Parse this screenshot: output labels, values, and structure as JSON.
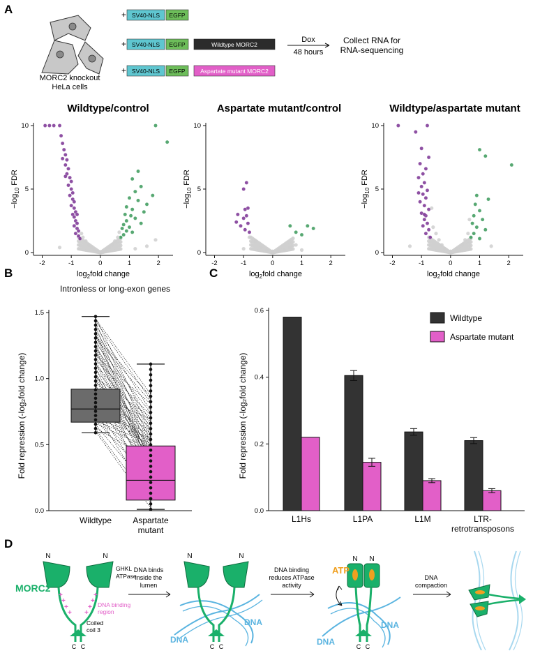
{
  "colors": {
    "purple": "#7b3294",
    "green": "#3a9a5a",
    "grey": "#cfcfcf",
    "dark": "#333333",
    "pink": "#e25fc8",
    "morc_green": "#1ab06a",
    "dna_blue": "#5ab4e0",
    "sv40": "#5fc6d0",
    "egfp": "#6dbd5a",
    "atp_orange": "#f0a020"
  },
  "panel_a": {
    "label": "A",
    "cells_label_line1": "MORC2 knockout",
    "cells_label_line2": "HeLa cells",
    "constructs": [
      {
        "plus": "+",
        "sv40": "SV40-NLS",
        "egfp": "EGFP",
        "extra": ""
      },
      {
        "plus": "+",
        "sv40": "SV40-NLS",
        "egfp": "EGFP",
        "extra": "Wildtype MORC2"
      },
      {
        "plus": "+",
        "sv40": "SV40-NLS",
        "egfp": "EGFP",
        "extra": "Aspartate mutant MORC2"
      }
    ],
    "dox": "Dox",
    "hours": "48 hours",
    "collect_line1": "Collect RNA for",
    "collect_line2": "RNA-sequencing"
  },
  "volcano_plots": [
    {
      "title": "Wildtype/control"
    },
    {
      "title": "Aspartate mutant/control"
    },
    {
      "title": "Wildtype/aspartate mutant"
    }
  ],
  "volcano_axes": {
    "xlabel_prefix": "log",
    "xlabel_sub": "2",
    "xlabel_suffix": "fold change",
    "ylabel_prefix": "−log",
    "ylabel_sub": "10",
    "ylabel_suffix": " FDR",
    "xticks": [
      "-2",
      "-1",
      "0",
      "1",
      "2"
    ],
    "yticks": [
      "0",
      "5",
      "10"
    ]
  },
  "panel_b": {
    "label": "B",
    "title": "Intronless or long-exon genes",
    "ylabel": "Fold repression (-log₂fold change)",
    "yticks": [
      "0.0",
      "0.5",
      "1.0",
      "1.5"
    ],
    "groups": [
      "Wildtype",
      "Aspartate",
      "mutant"
    ]
  },
  "panel_c": {
    "label": "C",
    "ylabel": "Fold repression (-log₂fold change)",
    "yticks": [
      "0.0",
      "0.2",
      "0.4",
      "0.6"
    ],
    "legend_wt": "Wildtype",
    "legend_mut": "Aspartate mutant",
    "cat_l1hs": "L1Hs",
    "cat_l1pa": "L1PA",
    "cat_l1m": "L1M",
    "cat_ltr1": "LTR-",
    "cat_ltr2": "retrotransposons"
  },
  "panel_d": {
    "label": "D",
    "morc2": "MORC2",
    "n": "N",
    "c": "C",
    "ghkl1": "GHKL",
    "ghkl2": "ATPase",
    "dna_binding1": "DNA binding",
    "dna_binding2": "region",
    "coiled1": "Coiled",
    "coiled2": "coil 3",
    "step1_line1": "DNA binds",
    "step1_line2": "inside the",
    "step1_line3": "lumen",
    "step2_line1": "DNA binding",
    "step2_line2": "reduces ATPase",
    "step2_line3": "activity",
    "step3_line1": "DNA",
    "step3_line2": "compaction",
    "dna": "DNA",
    "atp": "ATP"
  },
  "chart_data": [
    {
      "type": "scatter",
      "title": "Wildtype/control",
      "xlabel": "log2fold change",
      "ylabel": "−log10 FDR",
      "xlim": [
        -2.3,
        2.5
      ],
      "ylim": [
        0,
        10
      ],
      "series": [
        {
          "name": "repressed (purple)",
          "points": [
            [
              -1.9,
              10
            ],
            [
              -1.75,
              10
            ],
            [
              -1.6,
              10
            ],
            [
              -1.4,
              10
            ],
            [
              -1.35,
              9.2
            ],
            [
              -1.3,
              8.6
            ],
            [
              -1.25,
              8.1
            ],
            [
              -1.2,
              7.7
            ],
            [
              -1.15,
              7.3
            ],
            [
              -1.2,
              6.9
            ],
            [
              -1.1,
              6.6
            ],
            [
              -1.15,
              6.2
            ],
            [
              -1.05,
              5.9
            ],
            [
              -1.0,
              5.6
            ],
            [
              -1.1,
              5.3
            ],
            [
              -1.0,
              5.0
            ],
            [
              -0.95,
              4.7
            ],
            [
              -1.05,
              4.5
            ],
            [
              -0.95,
              4.2
            ],
            [
              -0.9,
              4.0
            ],
            [
              -1.0,
              3.7
            ],
            [
              -0.9,
              3.5
            ],
            [
              -0.85,
              3.2
            ],
            [
              -0.95,
              3.0
            ],
            [
              -0.9,
              2.8
            ],
            [
              -0.85,
              2.5
            ],
            [
              -0.8,
              2.3
            ],
            [
              -0.9,
              2.1
            ],
            [
              -0.8,
              1.9
            ],
            [
              -0.75,
              1.7
            ],
            [
              -0.85,
              1.5
            ],
            [
              -0.75,
              1.3
            ],
            [
              -0.7,
              1.1
            ],
            [
              -1.2,
              6.0
            ],
            [
              -1.3,
              7.4
            ],
            [
              -0.8,
              3.0
            ]
          ]
        },
        {
          "name": "upregulated (green)",
          "points": [
            [
              1.9,
              10
            ],
            [
              2.3,
              8.7
            ],
            [
              1.3,
              6.4
            ],
            [
              1.1,
              5.8
            ],
            [
              1.4,
              5.2
            ],
            [
              1.2,
              4.8
            ],
            [
              1.8,
              4.5
            ],
            [
              1.0,
              4.3
            ],
            [
              1.3,
              4.1
            ],
            [
              1.6,
              3.8
            ],
            [
              0.9,
              3.6
            ],
            [
              1.1,
              3.4
            ],
            [
              1.5,
              3.2
            ],
            [
              0.85,
              3.0
            ],
            [
              1.05,
              2.9
            ],
            [
              1.2,
              2.7
            ],
            [
              0.9,
              2.5
            ],
            [
              1.4,
              2.3
            ],
            [
              0.8,
              2.2
            ],
            [
              1.0,
              2.0
            ],
            [
              0.75,
              1.9
            ],
            [
              0.9,
              1.7
            ],
            [
              1.1,
              1.6
            ],
            [
              0.8,
              1.4
            ],
            [
              0.7,
              1.2
            ]
          ]
        },
        {
          "name": "not significant (grey)",
          "points": [
            [
              -0.6,
              1.2
            ],
            [
              -0.5,
              0.9
            ],
            [
              -0.4,
              0.6
            ],
            [
              -0.3,
              0.4
            ],
            [
              -0.2,
              0.2
            ],
            [
              -0.1,
              0.1
            ],
            [
              0,
              0.05
            ],
            [
              0.1,
              0.1
            ],
            [
              0.2,
              0.2
            ],
            [
              0.3,
              0.4
            ],
            [
              0.4,
              0.6
            ],
            [
              0.5,
              0.9
            ],
            [
              0.6,
              1.2
            ],
            [
              0.65,
              1.6
            ],
            [
              -0.65,
              1.5
            ],
            [
              1.2,
              0.3
            ],
            [
              1.6,
              0.5
            ],
            [
              -1.4,
              0.4
            ],
            [
              1.9,
              1.0
            ]
          ]
        }
      ]
    },
    {
      "type": "scatter",
      "title": "Aspartate mutant/control",
      "xlabel": "log2fold change",
      "ylabel": "−log10 FDR",
      "xlim": [
        -2.3,
        2.5
      ],
      "ylim": [
        0,
        10
      ],
      "series": [
        {
          "name": "repressed (purple)",
          "points": [
            [
              -0.9,
              5.5
            ],
            [
              -1.0,
              5.0
            ],
            [
              -0.85,
              3.5
            ],
            [
              -0.95,
              3.4
            ],
            [
              -1.2,
              3.0
            ],
            [
              -0.9,
              2.9
            ],
            [
              -1.0,
              2.7
            ],
            [
              -1.25,
              2.4
            ],
            [
              -0.85,
              2.3
            ],
            [
              -1.1,
              2.1
            ],
            [
              -0.95,
              1.8
            ],
            [
              -0.8,
              1.6
            ]
          ]
        },
        {
          "name": "upregulated (green)",
          "points": [
            [
              0.6,
              2.1
            ],
            [
              1.2,
              2.1
            ],
            [
              1.4,
              1.9
            ],
            [
              0.8,
              1.6
            ],
            [
              1.0,
              1.4
            ]
          ]
        },
        {
          "name": "not significant (grey)",
          "points": [
            [
              -0.8,
              1.2
            ],
            [
              -0.6,
              0.9
            ],
            [
              -0.4,
              0.4
            ],
            [
              -0.2,
              0.2
            ],
            [
              0,
              0.1
            ],
            [
              0.2,
              0.15
            ],
            [
              0.4,
              0.2
            ],
            [
              0.6,
              0.4
            ],
            [
              0.8,
              0.6
            ],
            [
              -1.0,
              0.3
            ],
            [
              1.0,
              0.2
            ]
          ]
        }
      ]
    },
    {
      "type": "scatter",
      "title": "Wildtype/aspartate mutant",
      "xlabel": "log2fold change",
      "ylabel": "−log10 FDR",
      "xlim": [
        -2.3,
        2.5
      ],
      "ylim": [
        0,
        10
      ],
      "series": [
        {
          "name": "repressed (purple)",
          "points": [
            [
              -1.8,
              10
            ],
            [
              -0.8,
              10
            ],
            [
              -1.2,
              9.5
            ],
            [
              -1.0,
              8.2
            ],
            [
              -0.75,
              7.5
            ],
            [
              -1.05,
              7.0
            ],
            [
              -0.85,
              6.6
            ],
            [
              -0.95,
              6.2
            ],
            [
              -1.1,
              5.9
            ],
            [
              -0.9,
              5.5
            ],
            [
              -1.0,
              5.2
            ],
            [
              -0.8,
              4.9
            ],
            [
              -0.95,
              4.6
            ],
            [
              -0.85,
              4.3
            ],
            [
              -1.05,
              4.0
            ],
            [
              -0.9,
              3.7
            ],
            [
              -0.75,
              3.4
            ],
            [
              -1.0,
              3.1
            ],
            [
              -0.85,
              2.9
            ],
            [
              -0.9,
              2.6
            ],
            [
              -0.8,
              2.3
            ],
            [
              -0.95,
              2.1
            ],
            [
              -0.75,
              1.8
            ],
            [
              -0.85,
              1.5
            ],
            [
              -0.7,
              1.2
            ],
            [
              -1.1,
              4.7
            ],
            [
              -0.9,
              3.0
            ]
          ]
        },
        {
          "name": "upregulated (green)",
          "points": [
            [
              2.1,
              6.9
            ],
            [
              1.0,
              8.1
            ],
            [
              1.2,
              7.6
            ],
            [
              0.9,
              4.5
            ],
            [
              1.3,
              4.2
            ],
            [
              0.85,
              3.8
            ],
            [
              1.0,
              3.3
            ],
            [
              0.8,
              2.9
            ],
            [
              1.1,
              2.6
            ],
            [
              0.75,
              2.3
            ],
            [
              0.9,
              2.0
            ],
            [
              1.2,
              1.8
            ],
            [
              0.8,
              1.5
            ],
            [
              0.7,
              1.2
            ],
            [
              1.0,
              1.1
            ]
          ]
        },
        {
          "name": "not significant (grey)",
          "points": [
            [
              -0.6,
              2.0
            ],
            [
              -0.5,
              1.5
            ],
            [
              -0.4,
              1.0
            ],
            [
              -0.3,
              0.6
            ],
            [
              -0.2,
              0.3
            ],
            [
              0,
              0.1
            ],
            [
              0.2,
              0.3
            ],
            [
              0.4,
              0.6
            ],
            [
              0.5,
              1.0
            ],
            [
              0.6,
              1.5
            ],
            [
              -1.4,
              0.5
            ],
            [
              1.4,
              0.5
            ],
            [
              -0.65,
              3.5
            ],
            [
              0.65,
              2.6
            ]
          ]
        }
      ]
    },
    {
      "type": "box",
      "title": "Intronless or long-exon genes",
      "ylabel": "Fold repression (-log2fold change)",
      "ylim": [
        0,
        1.5
      ],
      "categories": [
        "Wildtype",
        "Aspartate mutant"
      ],
      "boxes": [
        {
          "min": 0.59,
          "q1": 0.67,
          "median": 0.77,
          "q3": 0.92,
          "max": 1.47
        },
        {
          "min": 0.01,
          "q1": 0.08,
          "median": 0.23,
          "q3": 0.49,
          "max": 1.11
        }
      ]
    },
    {
      "type": "bar",
      "ylabel": "Fold repression (-log2fold change)",
      "ylim": [
        0,
        0.6
      ],
      "categories": [
        "L1Hs",
        "L1PA",
        "L1M",
        "LTR-retrotransposons"
      ],
      "series": [
        {
          "name": "Wildtype",
          "values": [
            0.58,
            0.405,
            0.236,
            0.21
          ],
          "errors": [
            0,
            0.015,
            0.01,
            0.009
          ]
        },
        {
          "name": "Aspartate mutant",
          "values": [
            0.22,
            0.145,
            0.09,
            0.06
          ],
          "errors": [
            0,
            0.012,
            0.006,
            0.006
          ]
        }
      ]
    }
  ]
}
